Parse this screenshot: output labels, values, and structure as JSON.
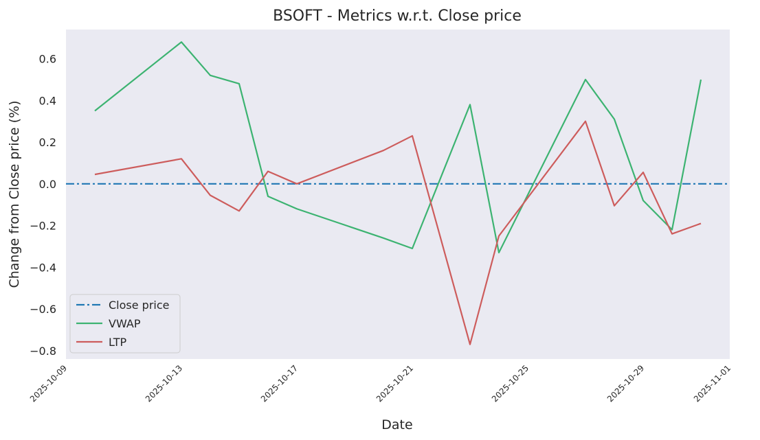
{
  "chart_data": {
    "type": "line",
    "title": "BSOFT - Metrics w.r.t. Close price",
    "xlabel": "Date",
    "ylabel": "Change from Close price (%)",
    "xlim": [
      "2025-10-09",
      "2025-11-01"
    ],
    "ylim": [
      -0.84,
      0.74
    ],
    "x_ticks": [
      "2025-10-09",
      "2025-10-13",
      "2025-10-17",
      "2025-10-21",
      "2025-10-25",
      "2025-10-29",
      "2025-11-01"
    ],
    "y_ticks": [
      0.6,
      0.4,
      0.2,
      0.0,
      -0.2,
      -0.4,
      -0.6,
      -0.8
    ],
    "y_tick_labels": [
      "0.6",
      "0.4",
      "0.2",
      "0.0",
      "−0.2",
      "−0.4",
      "−0.6",
      "−0.8"
    ],
    "grid": false,
    "legend_position": "lower-left",
    "background": "#eaeaf2",
    "series": [
      {
        "name": "Close price",
        "color": "#1f77b4",
        "style": "dashdot",
        "x": [
          "2025-10-09",
          "2025-11-01"
        ],
        "values": [
          0.0,
          0.0
        ]
      },
      {
        "name": "VWAP",
        "color": "#3cb371",
        "style": "solid",
        "x": [
          "2025-10-10",
          "2025-10-13",
          "2025-10-14",
          "2025-10-15",
          "2025-10-16",
          "2025-10-17",
          "2025-10-20",
          "2025-10-21",
          "2025-10-23",
          "2025-10-24",
          "2025-10-27",
          "2025-10-28",
          "2025-10-29",
          "2025-10-30",
          "2025-10-31"
        ],
        "values": [
          0.35,
          0.68,
          0.52,
          0.48,
          -0.06,
          -0.12,
          -0.26,
          -0.31,
          0.38,
          -0.33,
          0.5,
          0.31,
          -0.08,
          -0.22,
          0.5
        ]
      },
      {
        "name": "LTP",
        "color": "#cd5c5c",
        "style": "solid",
        "x": [
          "2025-10-10",
          "2025-10-13",
          "2025-10-14",
          "2025-10-15",
          "2025-10-16",
          "2025-10-17",
          "2025-10-20",
          "2025-10-21",
          "2025-10-23",
          "2025-10-24",
          "2025-10-27",
          "2025-10-28",
          "2025-10-29",
          "2025-10-30",
          "2025-10-31"
        ],
        "values": [
          0.045,
          0.12,
          -0.055,
          -0.13,
          0.06,
          0.0,
          0.16,
          0.23,
          -0.77,
          -0.25,
          0.3,
          -0.105,
          0.055,
          -0.24,
          -0.19
        ]
      }
    ]
  }
}
